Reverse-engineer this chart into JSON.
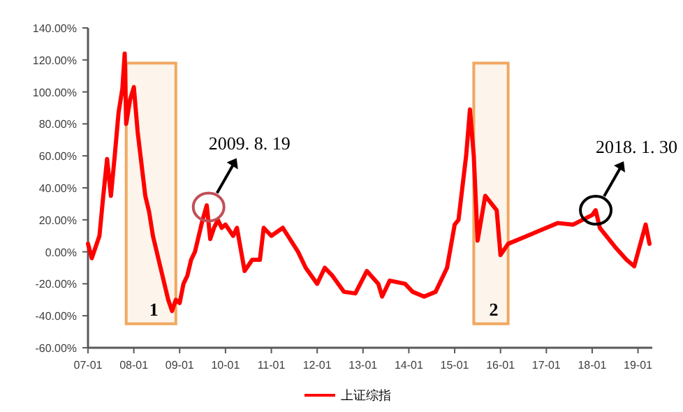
{
  "chart_data": {
    "type": "line",
    "x": [
      "2007-01",
      "2007-02",
      "2007-04",
      "2007-05",
      "2007-06",
      "2007-07",
      "2007-08",
      "2007-09",
      "2007-10",
      "2007-10-20",
      "2007-11",
      "2007-12",
      "2008-01",
      "2008-02",
      "2008-03",
      "2008-04",
      "2008-05",
      "2008-06",
      "2008-07",
      "2008-08",
      "2008-09",
      "2008-10",
      "2008-11",
      "2008-12",
      "2009-01",
      "2009-02",
      "2009-03",
      "2009-04",
      "2009-05",
      "2009-06",
      "2009-07",
      "2009-08-04",
      "2009-09",
      "2009-10",
      "2009-11",
      "2009-12",
      "2010-01",
      "2010-03",
      "2010-04",
      "2010-06",
      "2010-08",
      "2010-10",
      "2010-11",
      "2011-01",
      "2011-04",
      "2011-08",
      "2011-10",
      "2012-01",
      "2012-03",
      "2012-05",
      "2012-08",
      "2012-11",
      "2013-02",
      "2013-05",
      "2013-06",
      "2013-08",
      "2013-12",
      "2014-02",
      "2014-05",
      "2014-08",
      "2014-10",
      "2014-11",
      "2015-01",
      "2015-02",
      "2015-04",
      "2015-05",
      "2015-06",
      "2015-07",
      "2015-09",
      "2015-12",
      "2016-01",
      "2016-03",
      "2016-08",
      "2017-01",
      "2017-04",
      "2017-08",
      "2018-01",
      "2018-01-29",
      "2018-03",
      "2018-07",
      "2018-10",
      "2018-12",
      "2019-03",
      "2019-04"
    ],
    "series": [
      {
        "name": "上证综指",
        "color": "#ff0000",
        "values": [
          5,
          -4,
          10,
          35,
          58,
          35,
          60,
          87,
          102,
          124,
          80,
          95,
          103,
          75,
          55,
          35,
          25,
          10,
          0,
          -10,
          -20,
          -30,
          -37,
          -30,
          -32,
          -20,
          -15,
          -5,
          0,
          10,
          20,
          29,
          8,
          15,
          20,
          15,
          17,
          10,
          15,
          -12,
          -5,
          -5,
          15,
          10,
          15,
          0,
          -10,
          -20,
          -10,
          -15,
          -25,
          -26,
          -12,
          -20,
          -28,
          -18,
          -20,
          -25,
          -28,
          -25,
          -15,
          -10,
          17,
          20,
          60,
          89,
          60,
          7,
          35,
          26,
          -2,
          5,
          10,
          15,
          18,
          17,
          23,
          26,
          15,
          3,
          -5,
          -9,
          17,
          5
        ]
      }
    ],
    "xlim": [
      "2007-01",
      "2019-04"
    ],
    "xticks": [
      {
        "value": "2007-01",
        "label": "07-01"
      },
      {
        "value": "2008-01",
        "label": "08-01"
      },
      {
        "value": "2009-01",
        "label": "09-01"
      },
      {
        "value": "2010-01",
        "label": "10-01"
      },
      {
        "value": "2011-01",
        "label": "11-01"
      },
      {
        "value": "2012-01",
        "label": "12-01"
      },
      {
        "value": "2013-01",
        "label": "13-01"
      },
      {
        "value": "2014-01",
        "label": "14-01"
      },
      {
        "value": "2015-01",
        "label": "15-01"
      },
      {
        "value": "2016-01",
        "label": "16-01"
      },
      {
        "value": "2017-01",
        "label": "17-01"
      },
      {
        "value": "2018-01",
        "label": "18-01"
      },
      {
        "value": "2019-01",
        "label": "19-01"
      }
    ],
    "ylim": [
      -60,
      140
    ],
    "yticks": [
      {
        "value": -60,
        "label": "-60.00%"
      },
      {
        "value": -40,
        "label": "-40.00%"
      },
      {
        "value": -20,
        "label": "-20.00%"
      },
      {
        "value": 0,
        "label": "0.00%"
      },
      {
        "value": 20,
        "label": "20.00%"
      },
      {
        "value": 40,
        "label": "40.00%"
      },
      {
        "value": 60,
        "label": "60.00%"
      },
      {
        "value": 80,
        "label": "80.00%"
      },
      {
        "value": 100,
        "label": "100.00%"
      },
      {
        "value": 120,
        "label": "120.00%"
      },
      {
        "value": 140,
        "label": "140.00%"
      }
    ],
    "bands": [
      {
        "axis": "x",
        "from": "2007-11",
        "to": "2008-12",
        "label": "1",
        "color": "#f0a860"
      },
      {
        "axis": "x",
        "from": "2015-06",
        "to": "2016-03",
        "label": "2",
        "color": "#f0a860"
      }
    ],
    "annotations": [
      {
        "text": "2009. 8. 19",
        "x": "2009-08-19",
        "y": 28
      },
      {
        "text": "2018. 1. 30",
        "x": "2018-01-30",
        "y": 26
      }
    ],
    "legend": "bottom",
    "grid": false
  }
}
